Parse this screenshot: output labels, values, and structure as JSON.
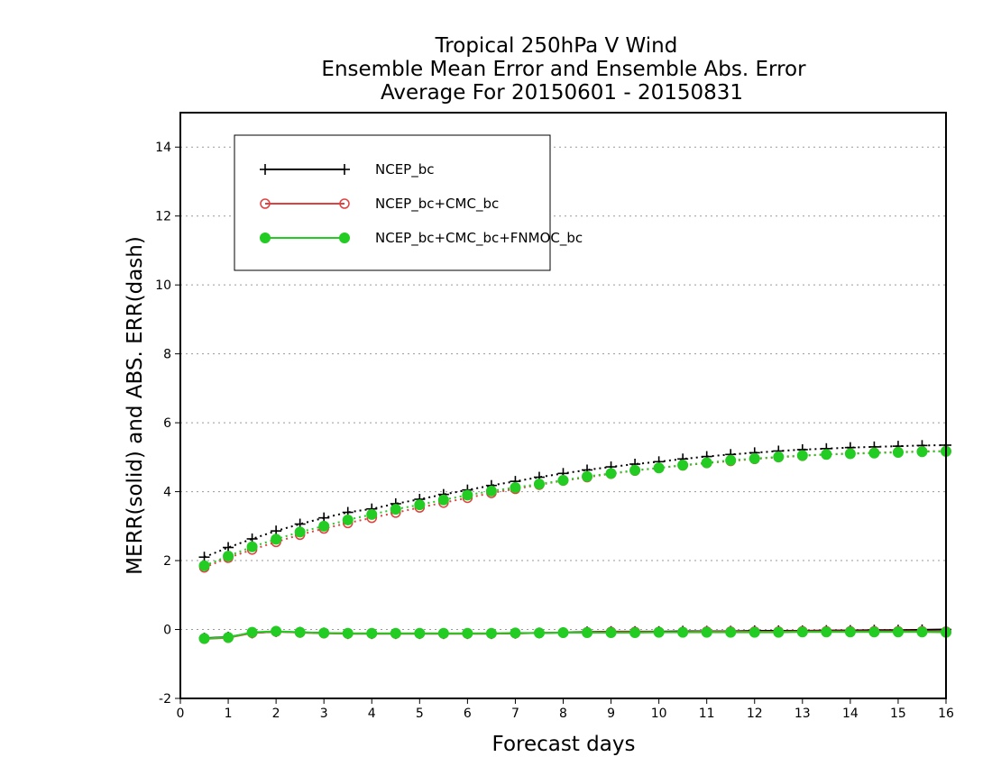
{
  "chart_data": {
    "type": "line",
    "title_lines": [
      "Tropical 250hPa V Wind",
      "Ensemble Mean Error and Ensemble Abs. Error",
      "Average For 20150601 - 20150831"
    ],
    "xlabel": "Forecast days",
    "ylabel": "MERR(solid) and ABS. ERR(dash)",
    "xlim": [
      0,
      16
    ],
    "ylim": [
      -2,
      15
    ],
    "xticks": [
      "0",
      "1",
      "2",
      "3",
      "4",
      "5",
      "6",
      "7",
      "8",
      "9",
      "10",
      "11",
      "12",
      "13",
      "14",
      "15",
      "16"
    ],
    "yticks": [
      "-2",
      "0",
      "2",
      "4",
      "6",
      "8",
      "10",
      "12",
      "14"
    ],
    "grid": true,
    "legend_position": "top-left",
    "x": [
      0.5,
      1.0,
      1.5,
      2.0,
      2.5,
      3.0,
      3.5,
      4.0,
      4.5,
      5.0,
      5.5,
      6.0,
      6.5,
      7.0,
      7.5,
      8.0,
      8.5,
      9.0,
      9.5,
      10.0,
      10.5,
      11.0,
      11.5,
      12.0,
      12.5,
      13.0,
      13.5,
      14.0,
      14.5,
      15.0,
      15.5,
      16.0
    ],
    "series": [
      {
        "name": "NCEP_bc",
        "color": "#000000",
        "marker": "plus",
        "merr": [
          -0.25,
          -0.22,
          -0.1,
          -0.06,
          -0.08,
          -0.1,
          -0.12,
          -0.12,
          -0.12,
          -0.12,
          -0.12,
          -0.12,
          -0.12,
          -0.11,
          -0.1,
          -0.09,
          -0.07,
          -0.06,
          -0.06,
          -0.06,
          -0.05,
          -0.05,
          -0.05,
          -0.04,
          -0.04,
          -0.04,
          -0.03,
          -0.03,
          -0.02,
          -0.02,
          -0.01,
          0.0
        ],
        "abs_err": [
          2.1,
          2.38,
          2.63,
          2.86,
          3.06,
          3.24,
          3.4,
          3.5,
          3.65,
          3.78,
          3.92,
          4.05,
          4.18,
          4.3,
          4.42,
          4.53,
          4.63,
          4.72,
          4.8,
          4.87,
          4.95,
          5.02,
          5.08,
          5.13,
          5.18,
          5.22,
          5.25,
          5.28,
          5.3,
          5.32,
          5.34,
          5.35
        ]
      },
      {
        "name": "NCEP_bc+CMC_bc",
        "color": "#e04040",
        "marker": "open-circle",
        "merr": [
          -0.27,
          -0.24,
          -0.1,
          -0.06,
          -0.09,
          -0.11,
          -0.12,
          -0.12,
          -0.12,
          -0.12,
          -0.12,
          -0.12,
          -0.12,
          -0.11,
          -0.1,
          -0.09,
          -0.08,
          -0.07,
          -0.07,
          -0.07,
          -0.07,
          -0.06,
          -0.06,
          -0.06,
          -0.06,
          -0.05,
          -0.05,
          -0.05,
          -0.05,
          -0.05,
          -0.05,
          -0.06
        ],
        "abs_err": [
          1.8,
          2.08,
          2.32,
          2.54,
          2.75,
          2.93,
          3.09,
          3.24,
          3.39,
          3.54,
          3.68,
          3.82,
          3.96,
          4.08,
          4.2,
          4.32,
          4.42,
          4.52,
          4.61,
          4.69,
          4.76,
          4.83,
          4.89,
          4.95,
          5.0,
          5.04,
          5.08,
          5.11,
          5.13,
          5.15,
          5.17,
          5.18
        ]
      },
      {
        "name": "NCEP_bc+CMC_bc+FNMOC_bc",
        "color": "#22cc22",
        "marker": "filled-circle",
        "merr": [
          -0.26,
          -0.23,
          -0.08,
          -0.05,
          -0.08,
          -0.1,
          -0.11,
          -0.11,
          -0.11,
          -0.11,
          -0.11,
          -0.11,
          -0.11,
          -0.1,
          -0.1,
          -0.09,
          -0.09,
          -0.09,
          -0.09,
          -0.08,
          -0.08,
          -0.08,
          -0.08,
          -0.08,
          -0.08,
          -0.07,
          -0.07,
          -0.07,
          -0.07,
          -0.07,
          -0.07,
          -0.08
        ],
        "abs_err": [
          1.85,
          2.13,
          2.4,
          2.62,
          2.83,
          3.0,
          3.18,
          3.34,
          3.49,
          3.62,
          3.76,
          3.9,
          4.02,
          4.12,
          4.22,
          4.33,
          4.44,
          4.53,
          4.62,
          4.69,
          4.77,
          4.84,
          4.91,
          4.96,
          5.01,
          5.05,
          5.08,
          5.1,
          5.12,
          5.14,
          5.16,
          5.17
        ]
      }
    ]
  }
}
